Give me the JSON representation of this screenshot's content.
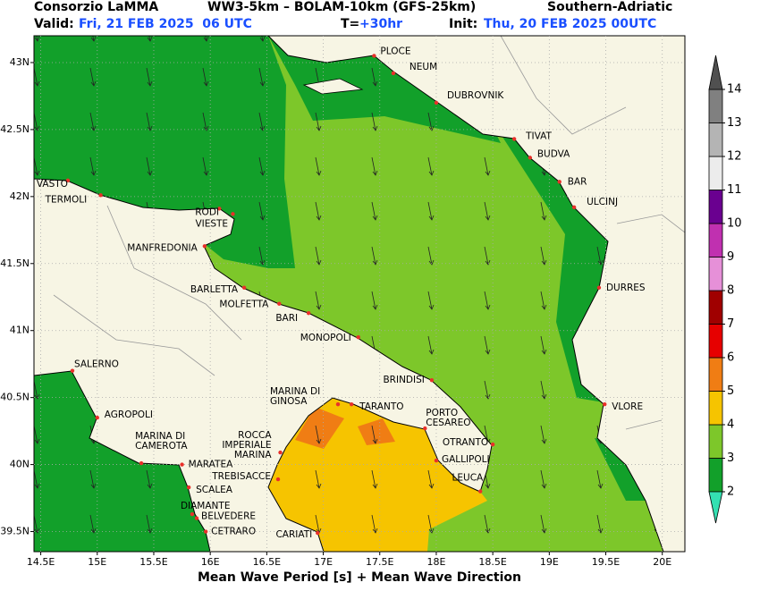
{
  "header": {
    "source": "Consorzio LaMMA",
    "model": "WW3-5km – BOLAM-10km (GFS-25km)",
    "region": "Southern-Adriatic",
    "valid_label": "Valid:",
    "valid_time": "Fri, 21 FEB 2025  06 UTC",
    "lead_label": "T=",
    "lead_time": "+30hr",
    "init_label": "Init:",
    "init_time": "Thu, 20 FEB 2025 00UTC"
  },
  "map": {
    "lon_lim": [
      14.44,
      20.2
    ],
    "lat_lim": [
      39.35,
      43.2
    ],
    "grid": true,
    "xticks": [
      {
        "value": 14.5,
        "label": "14.5E"
      },
      {
        "value": 15,
        "label": "15E"
      },
      {
        "value": 15.5,
        "label": "15.5E"
      },
      {
        "value": 16,
        "label": "16E"
      },
      {
        "value": 16.5,
        "label": "16.5E"
      },
      {
        "value": 17,
        "label": "17E"
      },
      {
        "value": 17.5,
        "label": "17.5E"
      },
      {
        "value": 18,
        "label": "18E"
      },
      {
        "value": 18.5,
        "label": "18.5E"
      },
      {
        "value": 19,
        "label": "19E"
      },
      {
        "value": 19.5,
        "label": "19.5E"
      },
      {
        "value": 20,
        "label": "20E"
      }
    ],
    "yticks": [
      {
        "value": 39.5,
        "label": "39.5N"
      },
      {
        "value": 40,
        "label": "40N"
      },
      {
        "value": 40.5,
        "label": "40.5N"
      },
      {
        "value": 41,
        "label": "41N"
      },
      {
        "value": 41.5,
        "label": "41.5N"
      },
      {
        "value": 42,
        "label": "42N"
      },
      {
        "value": 42.5,
        "label": "42.5N"
      },
      {
        "value": 43,
        "label": "43N"
      }
    ],
    "cities": [
      {
        "label": [
          "PLOCE"
        ],
        "lon": 17.45,
        "lat": 43.05
      },
      {
        "label": [
          "NEUM"
        ],
        "lon": 17.62,
        "lat": 42.92
      },
      {
        "label": [
          "DUBROVNIK"
        ],
        "lon": 18.0,
        "lat": 42.7
      },
      {
        "label": [
          "TIVAT"
        ],
        "lon": 18.69,
        "lat": 42.43
      },
      {
        "label": [
          "BUDVA"
        ],
        "lon": 18.83,
        "lat": 42.29
      },
      {
        "label": [
          "BAR"
        ],
        "lon": 19.09,
        "lat": 42.11
      },
      {
        "label": [
          "ULCINJ"
        ],
        "lon": 19.22,
        "lat": 41.92
      },
      {
        "label": [
          "DURRES"
        ],
        "lon": 19.44,
        "lat": 41.32
      },
      {
        "label": [
          "VLORE"
        ],
        "lon": 19.49,
        "lat": 40.45
      },
      {
        "label": [
          "VASTO"
        ],
        "lon": 14.74,
        "lat": 42.12
      },
      {
        "label": [
          "TERMOLI"
        ],
        "lon": 15.03,
        "lat": 42.01
      },
      {
        "label": [
          "RODI"
        ],
        "lon": 16.08,
        "lat": 41.91
      },
      {
        "label": [
          "VIESTE"
        ],
        "lon": 16.2,
        "lat": 41.87
      },
      {
        "label": [
          "MANFREDONIA"
        ],
        "lon": 15.95,
        "lat": 41.63
      },
      {
        "label": [
          "BARLETTA"
        ],
        "lon": 16.3,
        "lat": 41.32
      },
      {
        "label": [
          "MOLFETTA"
        ],
        "lon": 16.61,
        "lat": 41.2
      },
      {
        "label": [
          "BARI"
        ],
        "lon": 16.87,
        "lat": 41.13
      },
      {
        "label": [
          "MONOPOLI"
        ],
        "lon": 17.31,
        "lat": 40.95
      },
      {
        "label": [
          "BRINDISI"
        ],
        "lon": 17.96,
        "lat": 40.63
      },
      {
        "label": [
          "TARANTO"
        ],
        "lon": 17.25,
        "lat": 40.45
      },
      {
        "label": [
          "MARINA DI",
          "GINOSA"
        ],
        "lon": 17.13,
        "lat": 40.45
      },
      {
        "label": [
          "PORTO",
          "CESAREO"
        ],
        "lon": 17.9,
        "lat": 40.27
      },
      {
        "label": [
          "OTRANTO"
        ],
        "lon": 18.5,
        "lat": 40.15
      },
      {
        "label": [
          "GALLIPOLI"
        ],
        "lon": 18.0,
        "lat": 40.03
      },
      {
        "label": [
          "LEUCA"
        ],
        "lon": 18.39,
        "lat": 39.8
      },
      {
        "label": [
          "ROCCA",
          "IMPERIALE",
          "MARINA"
        ],
        "lon": 16.62,
        "lat": 40.09
      },
      {
        "label": [
          "TREBISACCE"
        ],
        "lon": 16.6,
        "lat": 39.89
      },
      {
        "label": [
          "CARIATI"
        ],
        "lon": 16.95,
        "lat": 39.49
      },
      {
        "label": [
          "SALERNO"
        ],
        "lon": 14.78,
        "lat": 40.7
      },
      {
        "label": [
          "AGROPOLI"
        ],
        "lon": 15.0,
        "lat": 40.35
      },
      {
        "label": [
          "MARINA DI",
          "CAMEROTA"
        ],
        "lon": 15.39,
        "lat": 40.01
      },
      {
        "label": [
          "MARATEA"
        ],
        "lon": 15.75,
        "lat": 40.0
      },
      {
        "label": [
          "SCALEA"
        ],
        "lon": 15.81,
        "lat": 39.83
      },
      {
        "label": [
          "DIAMANTE"
        ],
        "lon": 15.84,
        "lat": 39.63
      },
      {
        "label": [
          "BELVEDERE"
        ],
        "lon": 15.88,
        "lat": 39.6
      },
      {
        "label": [
          "CETRARO"
        ],
        "lon": 15.96,
        "lat": 39.5
      }
    ]
  },
  "colorbar": {
    "ticks": [
      2,
      3,
      4,
      5,
      6,
      7,
      8,
      9,
      10,
      11,
      12,
      13,
      14
    ],
    "colors": [
      "#12a02a",
      "#7dc72a",
      "#f6c400",
      "#f07d14",
      "#e60000",
      "#a00000",
      "#e690d8",
      "#c030b0",
      "#6a0090",
      "#ececec",
      "#b4b4b4",
      "#808080"
    ],
    "under_color": "#34e0b2",
    "over_color": "#505050"
  },
  "caption": "Mean Wave Period [s] + Mean Wave Direction"
}
